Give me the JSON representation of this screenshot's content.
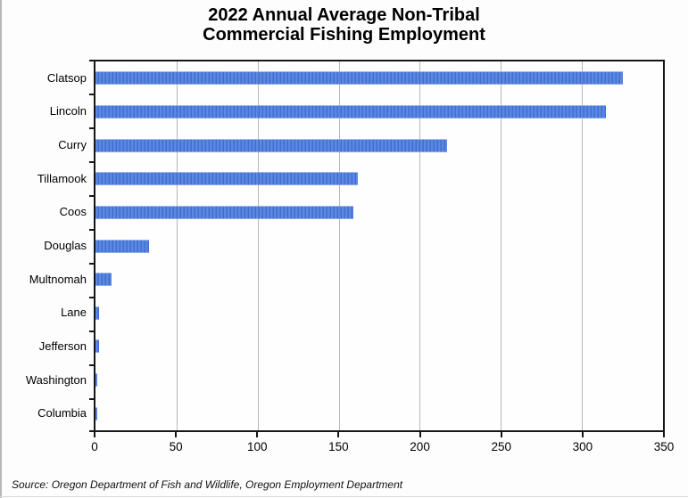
{
  "title": {
    "line1": "2022 Annual Average Non-Tribal",
    "line2": "Commercial Fishing Employment"
  },
  "source_note": "Source: Oregon Department of Fish and Wildlife, Oregon Employment Department",
  "chart_data": {
    "type": "bar",
    "orientation": "horizontal",
    "title": "2022 Annual Average Non-Tribal Commercial Fishing Employment",
    "categories": [
      "Clatsop",
      "Lincoln",
      "Curry",
      "Tillamook",
      "Coos",
      "Douglas",
      "Multnomah",
      "Lane",
      "Jefferson",
      "Washington",
      "Columbia"
    ],
    "values": [
      325,
      315,
      217,
      162,
      159,
      33,
      10,
      2,
      2,
      1,
      1
    ],
    "xlabel": "",
    "ylabel": "",
    "xlim": [
      0,
      350
    ],
    "x_ticks": [
      0,
      50,
      100,
      150,
      200,
      250,
      300,
      350
    ],
    "grid": "vertical",
    "legend": "none",
    "bar_color_light": "#5c88e2",
    "bar_color_dark": "#3f6fd0",
    "gridline_color": "#c9c9c9",
    "axis_color": "#161616",
    "background_color": "#fdfdfd"
  }
}
